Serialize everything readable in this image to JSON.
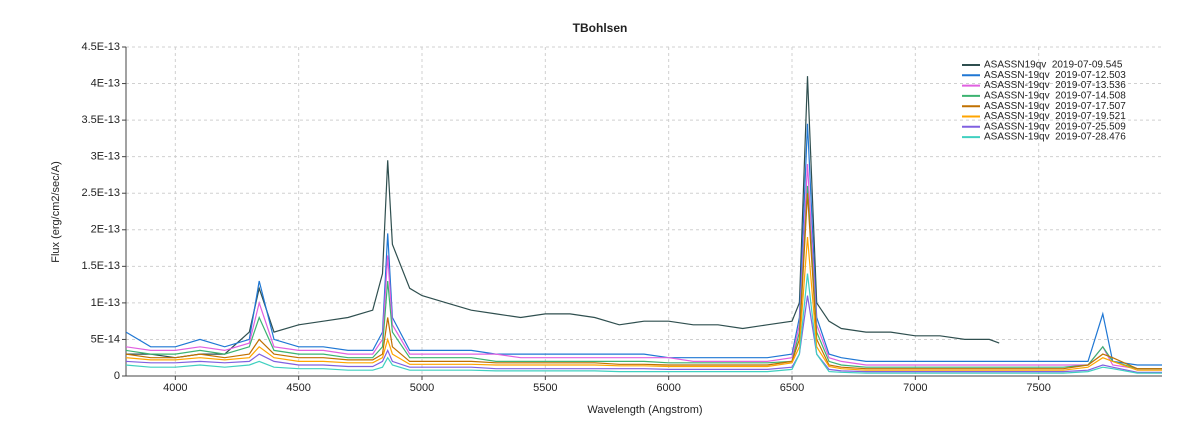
{
  "chart_data": {
    "type": "line",
    "title": "TBohlsen",
    "x_label": "Wavelength (Angstrom)",
    "y_label": "Flux (erg/cm2/sec/A)",
    "x": [
      3800,
      3900,
      4000,
      4100,
      4200,
      4300,
      4340,
      4400,
      4500,
      4600,
      4700,
      4800,
      4840,
      4861,
      4880,
      4950,
      5000,
      5100,
      5200,
      5300,
      5400,
      5500,
      5600,
      5700,
      5800,
      5900,
      6000,
      6100,
      6200,
      6300,
      6400,
      6500,
      6530,
      6563,
      6600,
      6650,
      6700,
      6800,
      6900,
      7000,
      7100,
      7200,
      7300,
      7340,
      7400,
      7500,
      7600,
      7700,
      7760,
      7800,
      7900,
      8000
    ],
    "xlim": [
      3800,
      8000
    ],
    "xticks": [
      4000,
      4500,
      5000,
      5500,
      6000,
      6500,
      7000,
      7500
    ],
    "ylim": [
      0,
      4.5e-13
    ],
    "yticks": [
      0,
      {
        "value": 5e-14,
        "label": "5E-14"
      },
      {
        "value": 1e-13,
        "label": "1E-13"
      },
      {
        "value": 1.5e-13,
        "label": "1.5E-13"
      },
      {
        "value": 2e-13,
        "label": "2E-13"
      },
      {
        "value": 2.5e-13,
        "label": "2.5E-13"
      },
      {
        "value": 3e-13,
        "label": "3E-13"
      },
      {
        "value": 3.5e-13,
        "label": "3.5E-13"
      },
      {
        "value": 4e-13,
        "label": "4E-13"
      },
      {
        "value": 4.5e-13,
        "label": "4.5E-13"
      }
    ],
    "grid": true,
    "legend": "upper right",
    "series": [
      {
        "name": "ASASSN19qv  2019-07-09.545",
        "color": "#2f4f4f",
        "values": [
          3e-14,
          3e-14,
          2.5e-14,
          3e-14,
          3e-14,
          6e-14,
          1.2e-13,
          6e-14,
          7e-14,
          7.5e-14,
          8e-14,
          9e-14,
          1.4e-13,
          2.95e-13,
          1.8e-13,
          1.2e-13,
          1.1e-13,
          1e-13,
          9e-14,
          8.5e-14,
          8e-14,
          8.5e-14,
          8.5e-14,
          8e-14,
          7e-14,
          7.5e-14,
          7.5e-14,
          7e-14,
          7e-14,
          6.5e-14,
          7e-14,
          7.5e-14,
          1e-13,
          4.1e-13,
          1e-13,
          7.5e-14,
          6.5e-14,
          6e-14,
          6e-14,
          5.5e-14,
          5.5e-14,
          5e-14,
          5e-14,
          4.5e-14,
          null,
          null,
          null,
          null,
          null,
          null,
          null,
          null
        ]
      },
      {
        "name": "ASASSN-19qv  2019-07-12.503",
        "color": "#1f77d4",
        "values": [
          6e-14,
          4e-14,
          4e-14,
          5e-14,
          4e-14,
          5e-14,
          1.3e-13,
          5e-14,
          4e-14,
          4e-14,
          3.5e-14,
          3.5e-14,
          6e-14,
          1.95e-13,
          8e-14,
          3.5e-14,
          3.5e-14,
          3.5e-14,
          3.5e-14,
          3e-14,
          3e-14,
          3e-14,
          3e-14,
          3e-14,
          3e-14,
          3e-14,
          2.5e-14,
          2.5e-14,
          2.5e-14,
          2.5e-14,
          2.5e-14,
          3e-14,
          8e-14,
          3.45e-13,
          8e-14,
          3e-14,
          2.5e-14,
          2e-14,
          2e-14,
          2e-14,
          2e-14,
          2e-14,
          2e-14,
          2e-14,
          2e-14,
          2e-14,
          2e-14,
          2e-14,
          8.5e-14,
          2e-14,
          1.5e-14,
          1.5e-14
        ]
      },
      {
        "name": "ASASSN-19qv  2019-07-13.536",
        "color": "#e060e0",
        "values": [
          4e-14,
          3.5e-14,
          3.5e-14,
          4e-14,
          3.5e-14,
          4.5e-14,
          1e-13,
          4e-14,
          3.5e-14,
          3.5e-14,
          3e-14,
          3e-14,
          5e-14,
          1.65e-13,
          7e-14,
          3e-14,
          3e-14,
          3e-14,
          3e-14,
          3e-14,
          2.5e-14,
          2.5e-14,
          2.5e-14,
          2.5e-14,
          2.5e-14,
          2.5e-14,
          2.5e-14,
          2e-14,
          2e-14,
          2e-14,
          2e-14,
          2.5e-14,
          7e-14,
          2.9e-13,
          7e-14,
          2.5e-14,
          2e-14,
          1.5e-14,
          1.5e-14,
          1.5e-14,
          1.5e-14,
          1.5e-14,
          1.5e-14,
          1.5e-14,
          1.5e-14,
          1.5e-14,
          1.5e-14,
          1.5e-14,
          4e-14,
          1.5e-14,
          1e-14,
          1e-14
        ]
      },
      {
        "name": "ASASSN-19qv  2019-07-14.508",
        "color": "#3cb371",
        "values": [
          3.5e-14,
          3e-14,
          3e-14,
          3.5e-14,
          3e-14,
          4e-14,
          8e-14,
          3.5e-14,
          3e-14,
          3e-14,
          2.5e-14,
          2.5e-14,
          4e-14,
          1.3e-13,
          6e-14,
          2.5e-14,
          2.5e-14,
          2.5e-14,
          2.5e-14,
          2e-14,
          2e-14,
          2e-14,
          2e-14,
          2e-14,
          2e-14,
          2e-14,
          1.8e-14,
          1.8e-14,
          1.8e-14,
          1.8e-14,
          1.8e-14,
          2e-14,
          6e-14,
          2.6e-13,
          6e-14,
          2e-14,
          1.5e-14,
          1.2e-14,
          1.2e-14,
          1.2e-14,
          1.2e-14,
          1.2e-14,
          1.2e-14,
          1.2e-14,
          1.2e-14,
          1.2e-14,
          1.2e-14,
          1.5e-14,
          4e-14,
          2e-14,
          1e-14,
          1e-14
        ]
      },
      {
        "name": "ASASSN-19qv  2019-07-17.507",
        "color": "#c07000",
        "values": [
          3e-14,
          2.5e-14,
          2.5e-14,
          3e-14,
          2.5e-14,
          3e-14,
          5e-14,
          3e-14,
          2.5e-14,
          2.5e-14,
          2.2e-14,
          2.2e-14,
          3e-14,
          8e-14,
          4e-14,
          2e-14,
          2e-14,
          2e-14,
          2e-14,
          1.8e-14,
          1.8e-14,
          1.8e-14,
          1.8e-14,
          1.8e-14,
          1.6e-14,
          1.6e-14,
          1.5e-14,
          1.5e-14,
          1.5e-14,
          1.5e-14,
          1.5e-14,
          2e-14,
          5e-14,
          2.5e-13,
          5e-14,
          1.5e-14,
          1.2e-14,
          1e-14,
          1e-14,
          1e-14,
          1e-14,
          1e-14,
          1e-14,
          1e-14,
          1e-14,
          1e-14,
          1e-14,
          1.5e-14,
          3e-14,
          2.5e-14,
          1e-14,
          1e-14
        ]
      },
      {
        "name": "ASASSN-19qv  2019-07-19.521",
        "color": "#ffa500",
        "values": [
          2.5e-14,
          2.2e-14,
          2.2e-14,
          2.5e-14,
          2.2e-14,
          2.5e-14,
          4e-14,
          2.5e-14,
          2e-14,
          2e-14,
          1.8e-14,
          1.8e-14,
          2.5e-14,
          5e-14,
          3e-14,
          1.6e-14,
          1.6e-14,
          1.6e-14,
          1.6e-14,
          1.5e-14,
          1.5e-14,
          1.5e-14,
          1.5e-14,
          1.5e-14,
          1.4e-14,
          1.4e-14,
          1.3e-14,
          1.3e-14,
          1.3e-14,
          1.3e-14,
          1.3e-14,
          1.8e-14,
          4e-14,
          1.9e-13,
          4e-14,
          1.3e-14,
          1e-14,
          8e-15,
          8e-15,
          8e-15,
          8e-15,
          8e-15,
          8e-15,
          8e-15,
          8e-15,
          8e-15,
          8e-15,
          1.2e-14,
          2.5e-14,
          2e-14,
          8e-15,
          8e-15
        ]
      },
      {
        "name": "ASASSN-19qv  2019-07-25.509",
        "color": "#8060e0",
        "values": [
          2e-14,
          1.8e-14,
          1.8e-14,
          2e-14,
          1.8e-14,
          2e-14,
          3e-14,
          2e-14,
          1.5e-14,
          1.5e-14,
          1.3e-14,
          1.3e-14,
          2e-14,
          3.5e-14,
          2e-14,
          1.2e-14,
          1.2e-14,
          1.2e-14,
          1.2e-14,
          1e-14,
          1e-14,
          1e-14,
          1e-14,
          1e-14,
          1e-14,
          1e-14,
          9e-15,
          9e-15,
          9e-15,
          9e-15,
          9e-15,
          1.2e-14,
          3e-14,
          1.1e-13,
          3e-14,
          9e-15,
          7e-15,
          6e-15,
          6e-15,
          6e-15,
          6e-15,
          6e-15,
          6e-15,
          6e-15,
          6e-15,
          6e-15,
          6e-15,
          8e-15,
          1.5e-14,
          1.2e-14,
          5e-15,
          5e-15
        ]
      },
      {
        "name": "ASASSN-19qv  2019-07-28.476",
        "color": "#40d0c0",
        "values": [
          1.5e-14,
          1.2e-14,
          1.2e-14,
          1.5e-14,
          1.2e-14,
          1.5e-14,
          2e-14,
          1.2e-14,
          1e-14,
          1e-14,
          8e-15,
          8e-15,
          1.2e-14,
          2.5e-14,
          1.5e-14,
          8e-15,
          8e-15,
          8e-15,
          8e-15,
          7e-15,
          7e-15,
          7e-15,
          7e-15,
          7e-15,
          6e-15,
          6e-15,
          6e-15,
          6e-15,
          6e-15,
          6e-15,
          6e-15,
          9e-15,
          3e-14,
          1.4e-13,
          3e-14,
          6e-15,
          5e-15,
          4e-15,
          4e-15,
          4e-15,
          4e-15,
          4e-15,
          4e-15,
          4e-15,
          4e-15,
          4e-15,
          4e-15,
          6e-15,
          1.2e-14,
          1e-14,
          4e-15,
          4e-15
        ]
      }
    ]
  }
}
